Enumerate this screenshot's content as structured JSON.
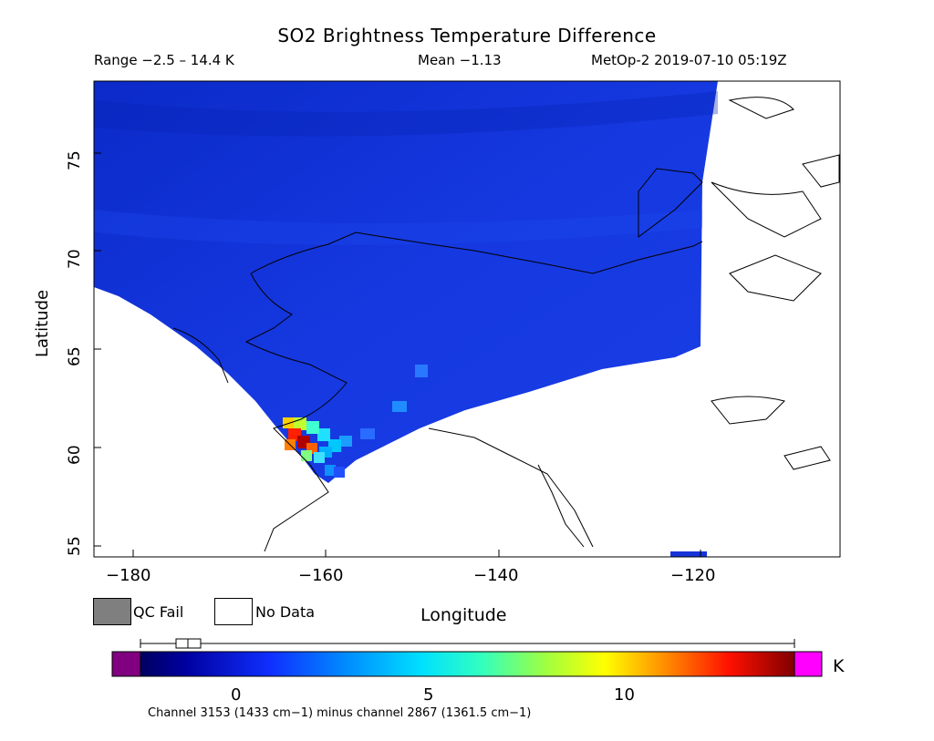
{
  "header": {
    "title": "SO2 Brightness Temperature Difference",
    "range": "Range −2.5 – 14.4 K",
    "mean": "Mean −1.13",
    "satellite_time": "MetOp-2 2019-07-10 05:19Z"
  },
  "axes": {
    "xlabel": "Longitude",
    "ylabel": "Latitude",
    "xticks": [
      "−180",
      "−160",
      "−140",
      "−120"
    ],
    "yticks": [
      "55",
      "60",
      "65",
      "70",
      "75"
    ]
  },
  "legend": {
    "qc_fail": "QC Fail",
    "no_data": "No Data",
    "qc_fail_color": "#7f7f7f",
    "no_data_color": "#ffffff"
  },
  "colorbar": {
    "ticks": [
      "0",
      "5",
      "10"
    ],
    "unit": "K",
    "underflow_color": "#800080",
    "overflow_color": "#ff00ff",
    "caption": "Channel 3153 (1433 cm−1) minus channel 2867 (1361.5 cm−1)"
  },
  "colors": {
    "background_field": "#1533d9",
    "plume_peak": "#c00000",
    "coastline": "#000000"
  }
}
